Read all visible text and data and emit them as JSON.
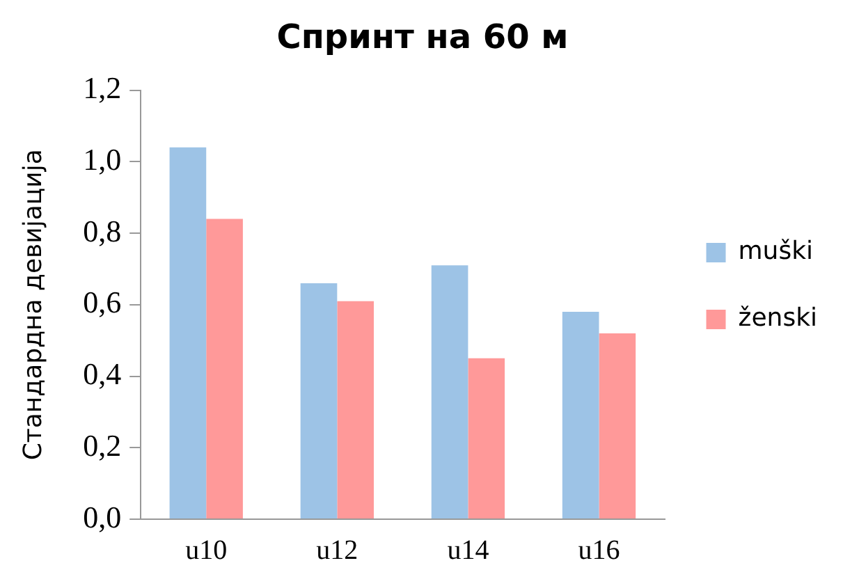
{
  "chart_data": {
    "type": "bar",
    "title": "Спринт на 60 м",
    "ylabel": "Стандардна девијација",
    "categories": [
      "u10",
      "u12",
      "u14",
      "u16"
    ],
    "series": [
      {
        "name": "muški",
        "color": "#9dc3e6",
        "values": [
          1.04,
          0.66,
          0.71,
          0.58
        ]
      },
      {
        "name": "ženski",
        "color": "#ff9999",
        "values": [
          0.84,
          0.61,
          0.45,
          0.52
        ]
      }
    ],
    "ylim": [
      0,
      1.2
    ],
    "yticks": [
      {
        "value": 0,
        "label": "0,0"
      },
      {
        "value": 0.2,
        "label": "0,2"
      },
      {
        "value": 0.4,
        "label": "0,4"
      },
      {
        "value": 0.6,
        "label": "0,6"
      },
      {
        "value": 0.8,
        "label": "0,8"
      },
      {
        "value": 1,
        "label": "1,0"
      },
      {
        "value": 1.2,
        "label": "1,2"
      }
    ],
    "grid": false,
    "legend": "right"
  }
}
